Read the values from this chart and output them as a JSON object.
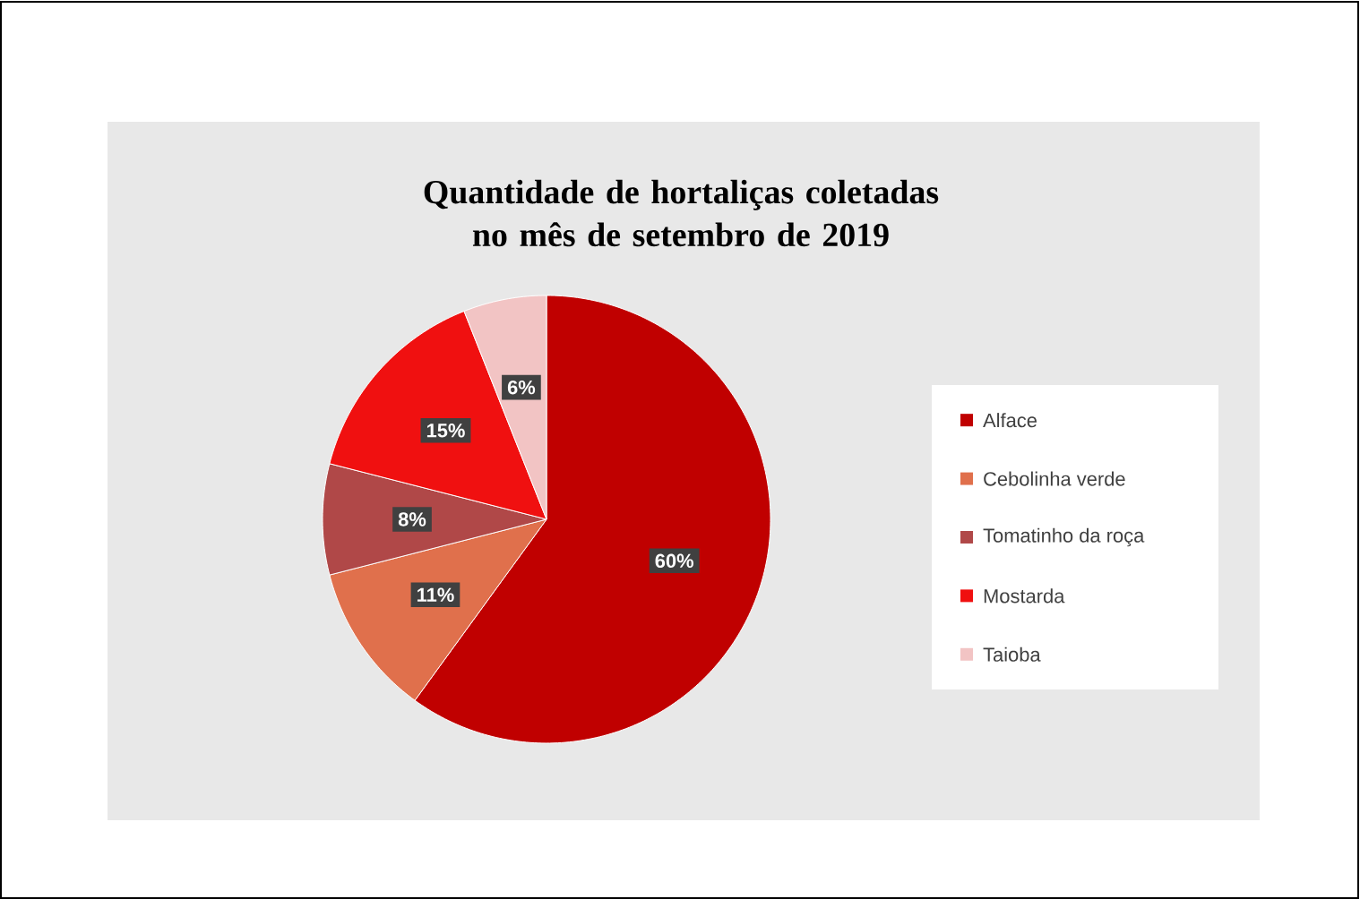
{
  "chart_data": {
    "type": "pie",
    "title": "Quantidade de hortaliças coletadas no mês de setembro de 2019",
    "categories": [
      "Alface",
      "Cebolinha verde",
      "Tomatinho da roça",
      "Mostarda",
      "Taioba"
    ],
    "values": [
      60,
      11,
      8,
      15,
      6
    ],
    "value_labels": [
      "60%",
      "11%",
      "8%",
      "15%",
      "6%"
    ],
    "colors": [
      "#c00000",
      "#e0704c",
      "#b04848",
      "#f01010",
      "#f2c4c4"
    ],
    "legend": "right"
  }
}
